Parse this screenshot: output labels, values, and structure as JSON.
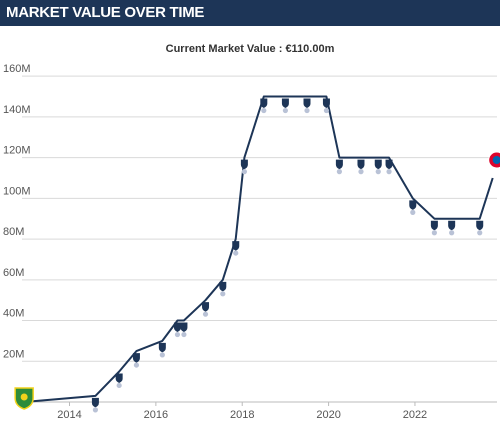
{
  "header": {
    "title": "MARKET VALUE OVER TIME"
  },
  "current_value_label": "Current Market Value : €110.00m",
  "colors": {
    "header_bg": "#1d3557",
    "line": "#1d3557",
    "marker": "#1d3557",
    "grid": "#d9d9d9",
    "club_badge_primary": "#dc052d"
  },
  "chart_data": {
    "type": "line",
    "title": "",
    "xlabel": "",
    "ylabel": "",
    "xlim": [
      2012.9,
      2023.9
    ],
    "ylim": [
      0,
      165
    ],
    "grid": "horizontal",
    "x_ticks": [
      {
        "value": 2014,
        "label": "2014"
      },
      {
        "value": 2016,
        "label": "2016"
      },
      {
        "value": 2018,
        "label": "2018"
      },
      {
        "value": 2020,
        "label": "2020"
      },
      {
        "value": 2022,
        "label": "2022"
      }
    ],
    "y_ticks": [
      {
        "value": 20,
        "label": "20M"
      },
      {
        "value": 40,
        "label": "40M"
      },
      {
        "value": 60,
        "label": "60M"
      },
      {
        "value": 80,
        "label": "80M"
      },
      {
        "value": 100,
        "label": "100M"
      },
      {
        "value": 120,
        "label": "120M"
      },
      {
        "value": 140,
        "label": "140M"
      },
      {
        "value": 160,
        "label": "160M"
      }
    ],
    "series": [
      {
        "values_unit": "€m",
        "points": [
          {
            "x": 2012.95,
            "y": 0
          },
          {
            "x": 2014.6,
            "y": 3
          },
          {
            "x": 2015.15,
            "y": 15
          },
          {
            "x": 2015.55,
            "y": 25
          },
          {
            "x": 2016.15,
            "y": 30
          },
          {
            "x": 2016.5,
            "y": 40
          },
          {
            "x": 2016.65,
            "y": 40
          },
          {
            "x": 2017.15,
            "y": 50
          },
          {
            "x": 2017.55,
            "y": 60
          },
          {
            "x": 2017.85,
            "y": 80
          },
          {
            "x": 2018.05,
            "y": 120
          },
          {
            "x": 2018.5,
            "y": 150
          },
          {
            "x": 2019.0,
            "y": 150
          },
          {
            "x": 2019.5,
            "y": 150
          },
          {
            "x": 2019.95,
            "y": 150
          },
          {
            "x": 2020.25,
            "y": 120
          },
          {
            "x": 2020.75,
            "y": 120
          },
          {
            "x": 2021.15,
            "y": 120
          },
          {
            "x": 2021.4,
            "y": 120
          },
          {
            "x": 2021.95,
            "y": 100
          },
          {
            "x": 2022.45,
            "y": 90
          },
          {
            "x": 2022.85,
            "y": 90
          },
          {
            "x": 2023.5,
            "y": 90
          },
          {
            "x": 2023.8,
            "y": 110
          }
        ]
      }
    ]
  }
}
